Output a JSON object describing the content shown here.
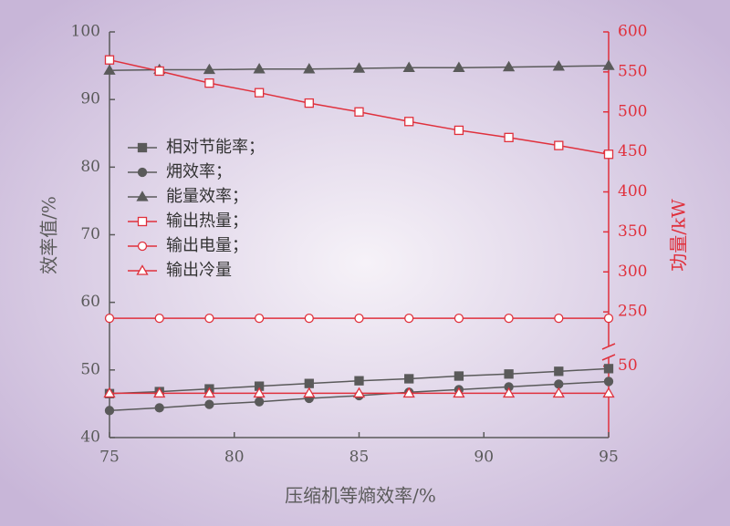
{
  "chart_data": {
    "type": "line",
    "x_label": "压缩机等熵效率/%",
    "y_label": "效率值/%",
    "y2_label": "功量/kW",
    "x": [
      75,
      77,
      79,
      81,
      83,
      85,
      87,
      89,
      91,
      93,
      95
    ],
    "xlim": [
      75,
      95
    ],
    "xticks": [
      75,
      80,
      85,
      90,
      95
    ],
    "ylim": [
      40,
      100
    ],
    "yticks": [
      40,
      50,
      60,
      70,
      80,
      90,
      100
    ],
    "y2lim": [
      0,
      600
    ],
    "y2break": [
      60,
      200
    ],
    "y2ticks": [
      50,
      250,
      300,
      350,
      400,
      450,
      500,
      550,
      600
    ],
    "legend": "upper left",
    "series": [
      {
        "name": "相对节能率；",
        "color": "#5a5a5a",
        "marker": "square",
        "filled": true,
        "axis": "y",
        "values": [
          46.5,
          46.8,
          47.2,
          47.6,
          48.0,
          48.4,
          48.7,
          49.1,
          49.4,
          49.8,
          50.2
        ]
      },
      {
        "name": "㶲效率；",
        "color": "#5a5a5a",
        "marker": "circle",
        "filled": true,
        "axis": "y",
        "values": [
          44.0,
          44.4,
          44.9,
          45.3,
          45.8,
          46.2,
          46.7,
          47.1,
          47.5,
          47.9,
          48.3
        ]
      },
      {
        "name": "能量效率；",
        "color": "#5a5a5a",
        "marker": "triangle",
        "filled": true,
        "axis": "y",
        "values": [
          94.3,
          94.4,
          94.4,
          94.5,
          94.5,
          94.6,
          94.7,
          94.7,
          94.8,
          94.9,
          95.0
        ]
      },
      {
        "name": "输出热量；",
        "color": "#e0303c",
        "marker": "square",
        "filled": false,
        "axis": "y2",
        "values": [
          565,
          551,
          536,
          524,
          511,
          500,
          488,
          477,
          468,
          458,
          447
        ]
      },
      {
        "name": "输出电量；",
        "color": "#e0303c",
        "marker": "circle",
        "filled": false,
        "axis": "y2",
        "values": [
          242,
          242,
          242,
          242,
          242,
          242,
          242,
          242,
          242,
          242,
          242
        ]
      },
      {
        "name": "输出冷量",
        "color": "#e0303c",
        "marker": "triangle",
        "filled": false,
        "axis": "y2",
        "values": [
          31,
          31,
          31,
          31,
          31,
          31,
          31,
          31,
          31,
          31,
          31
        ]
      }
    ]
  }
}
